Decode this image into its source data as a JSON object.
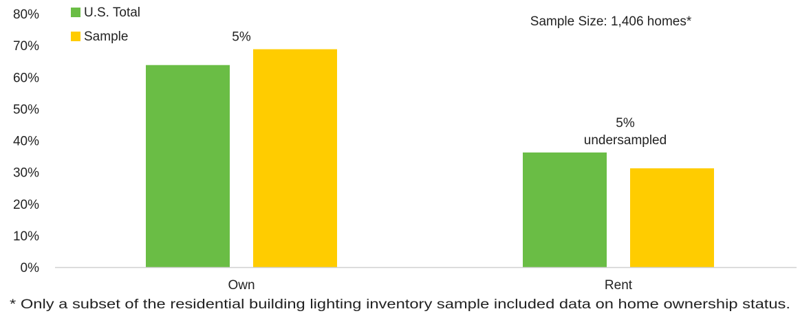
{
  "chart_data": {
    "type": "bar",
    "categories": [
      "Own",
      "Rent"
    ],
    "series": [
      {
        "name": "U.S. Total",
        "color": "#6ABD45",
        "values": [
          63.8,
          36.2
        ]
      },
      {
        "name": "Sample",
        "color": "#FFCC00",
        "values": [
          68.8,
          31.2
        ]
      }
    ],
    "ylim": [
      0,
      80
    ],
    "yticks": [
      0,
      10,
      20,
      30,
      40,
      50,
      60,
      70,
      80
    ],
    "ytick_labels": [
      "0%",
      "10%",
      "20%",
      "30%",
      "40%",
      "50%",
      "60%",
      "70%",
      "80%"
    ],
    "grid": false,
    "legend_position": "top-left",
    "annotations": [
      {
        "category": "Own",
        "lines": [
          "5%"
        ]
      },
      {
        "category": "Rent",
        "lines": [
          "5%",
          "undersampled"
        ]
      }
    ],
    "note": "Sample Size: 1,406 homes*",
    "footnote": "* Only a subset of the residential building lighting inventory sample included data on home ownership status."
  }
}
